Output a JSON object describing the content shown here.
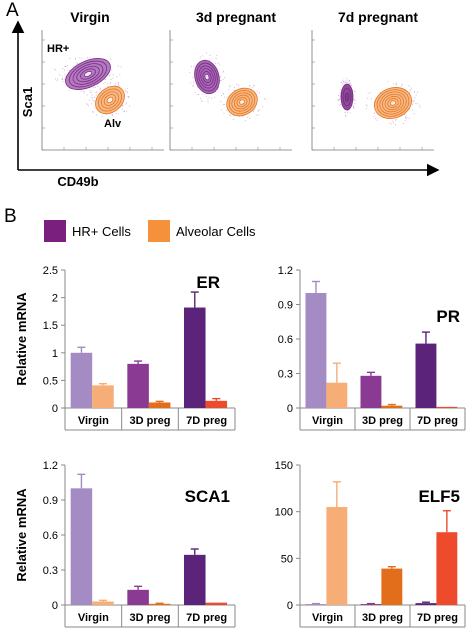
{
  "panels": {
    "a_label": "A",
    "b_label": "B"
  },
  "flow": {
    "columns": [
      "Virgin",
      "3d pregnant",
      "7d pregnant"
    ],
    "y_axis_label": "Sca1",
    "x_axis_label": "CD49b",
    "population_labels": {
      "hr": "HR+",
      "alv": "Alv"
    }
  },
  "legend": {
    "items": [
      {
        "label": "HR+ Cells",
        "color": "#7b1f7f"
      },
      {
        "label": "Alveolar Cells",
        "color": "#f4913a"
      }
    ]
  },
  "colors": {
    "hr_virgin": "#a58bc4",
    "hr_3d": "#8a3a92",
    "hr_7d": "#5b2379",
    "alv_virgin": "#f7ad76",
    "alv_3d": "#e26d1b",
    "alv_7d": "#ee4a2c",
    "hr_contour": "#7b2a82",
    "alv_contour": "#e8761c"
  },
  "chart_data": [
    {
      "type": "bar",
      "title": "ER",
      "ylabel": "Relative mRNA",
      "categories": [
        "Virgin",
        "3D preg",
        "7D preg"
      ],
      "yticks": [
        "0",
        "0.5",
        "1",
        "1.5",
        "2",
        "2.5"
      ],
      "ylim": [
        0,
        2.5
      ],
      "series": [
        {
          "values": [
            1.0,
            0.8,
            1.82
          ],
          "errors": [
            0.1,
            0.05,
            0.28
          ]
        },
        {
          "values": [
            0.41,
            0.1,
            0.13
          ],
          "errors": [
            0.03,
            0.02,
            0.04
          ]
        }
      ]
    },
    {
      "type": "bar",
      "title": "PR",
      "ylabel": "",
      "categories": [
        "Virgin",
        "3D preg",
        "7D preg"
      ],
      "yticks": [
        "0",
        "0.3",
        "0.6",
        "0.9",
        "1.2"
      ],
      "ylim": [
        0,
        1.2
      ],
      "series": [
        {
          "values": [
            1.0,
            0.28,
            0.56
          ],
          "errors": [
            0.1,
            0.03,
            0.1
          ]
        },
        {
          "values": [
            0.22,
            0.02,
            0.01
          ],
          "errors": [
            0.17,
            0.01,
            0.0
          ]
        }
      ]
    },
    {
      "type": "bar",
      "title": "SCA1",
      "ylabel": "Relative mRNA",
      "categories": [
        "Virgin",
        "3D preg",
        "7D preg"
      ],
      "yticks": [
        "0",
        "0.3",
        "0.6",
        "0.9",
        "1.2"
      ],
      "ylim": [
        0,
        1.2
      ],
      "series": [
        {
          "values": [
            1.0,
            0.13,
            0.43
          ],
          "errors": [
            0.12,
            0.03,
            0.05
          ]
        },
        {
          "values": [
            0.03,
            0.01,
            0.02
          ],
          "errors": [
            0.01,
            0.005,
            0.0
          ]
        }
      ]
    },
    {
      "type": "bar",
      "title": "ELF5",
      "ylabel": "",
      "categories": [
        "Virgin",
        "3D preg",
        "7D preg"
      ],
      "yticks": [
        "0",
        "50",
        "100",
        "150"
      ],
      "ylim": [
        0,
        150
      ],
      "series": [
        {
          "values": [
            1,
            1,
            2
          ],
          "errors": [
            0.5,
            0.5,
            1
          ]
        },
        {
          "values": [
            105,
            39,
            78
          ],
          "errors": [
            27,
            2,
            23
          ]
        }
      ]
    }
  ]
}
